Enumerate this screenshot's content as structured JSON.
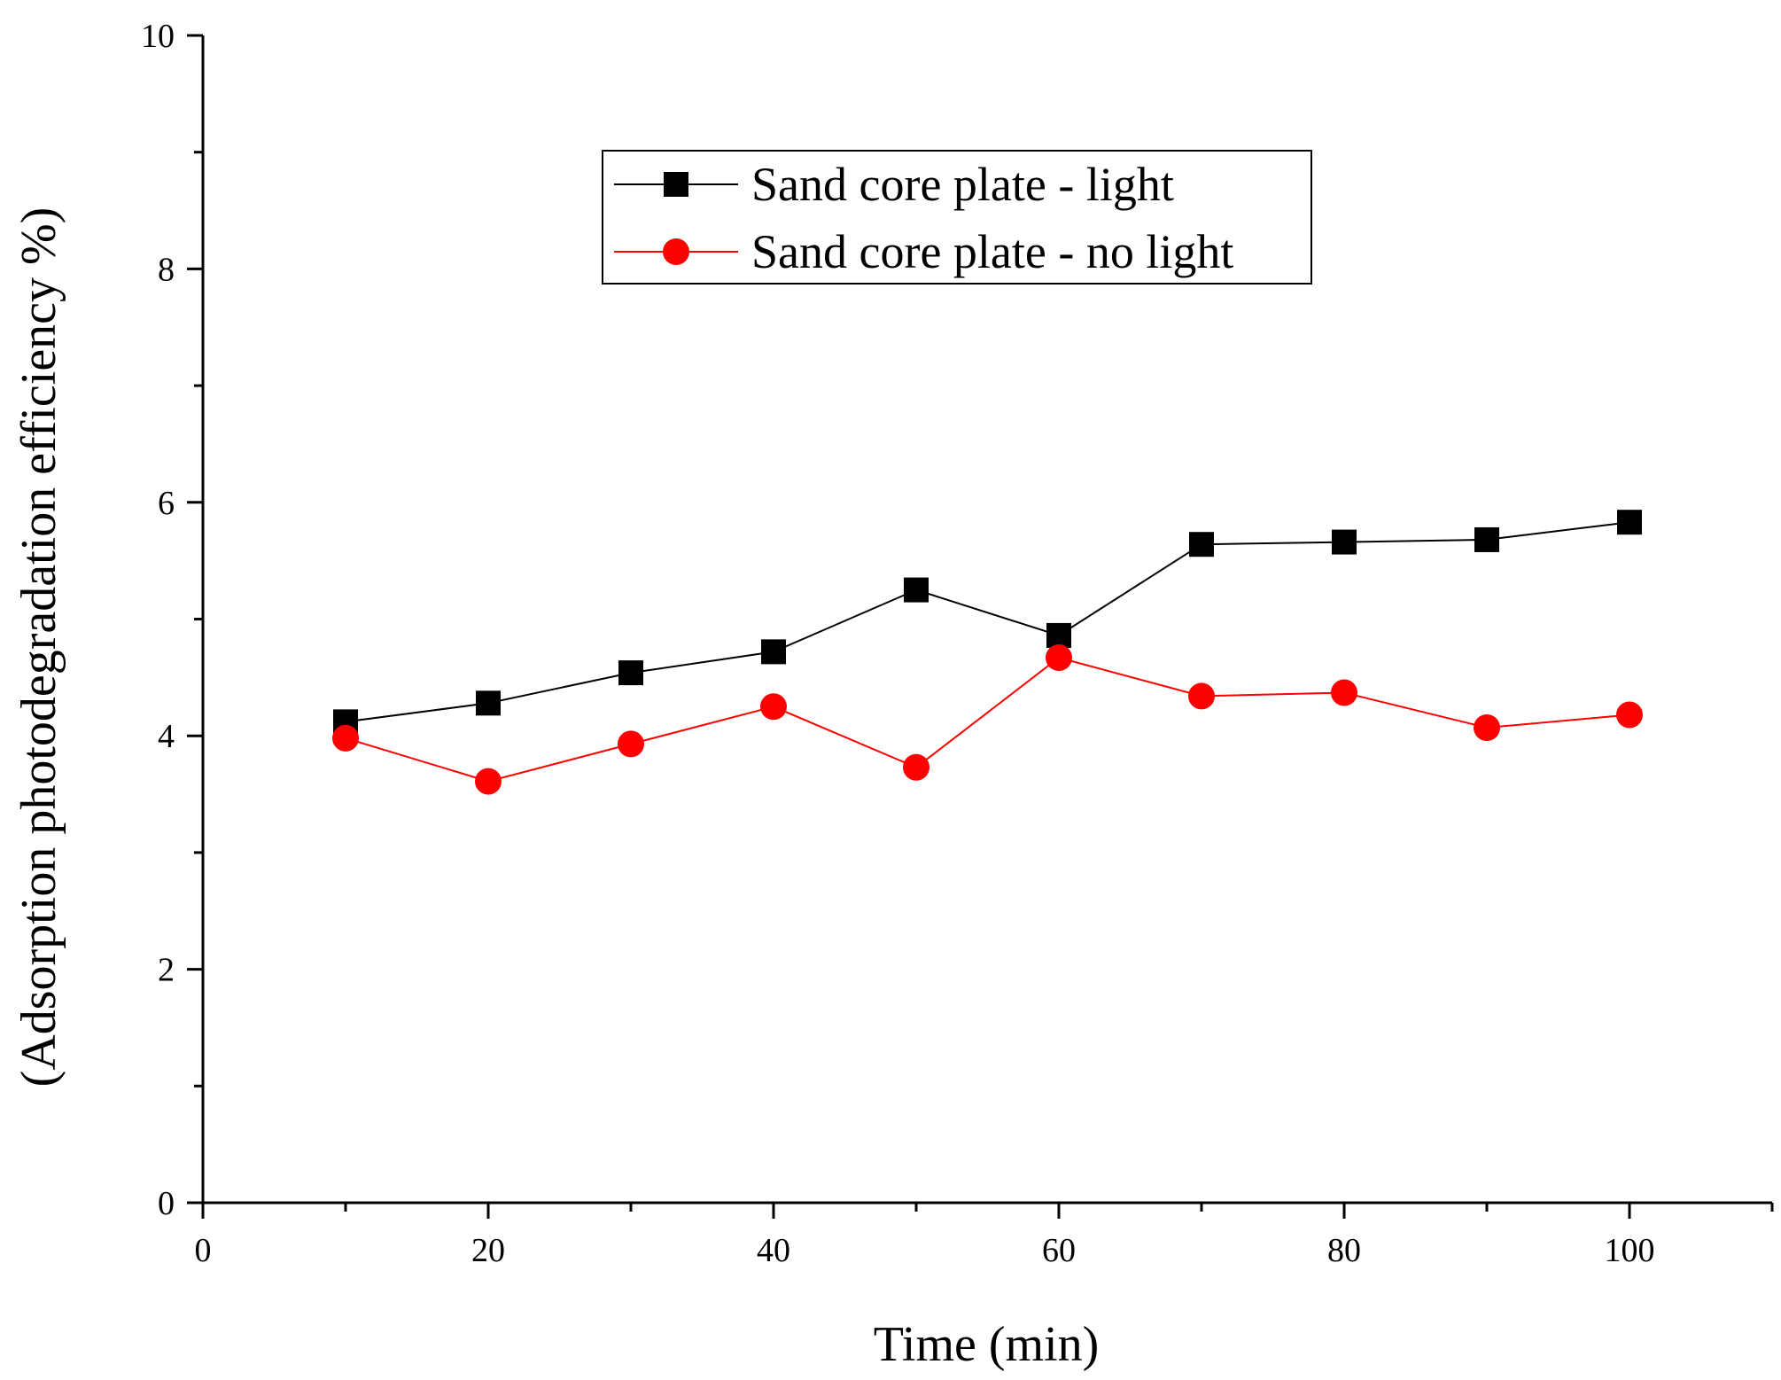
{
  "chart_data": {
    "type": "line",
    "title": "",
    "xlabel": "Time (min)",
    "ylabel": "(Adsorption photodegradation efficiency %)",
    "xlim": [
      0,
      110
    ],
    "ylim": [
      0,
      10
    ],
    "x_ticks": [
      0,
      20,
      40,
      60,
      80,
      100
    ],
    "x_tick_labels": [
      "0",
      "20",
      "40",
      "60",
      "80",
      "100"
    ],
    "x_minor_ticks": [
      10,
      30,
      50,
      70,
      90,
      110
    ],
    "y_ticks": [
      0,
      2,
      4,
      6,
      8,
      10
    ],
    "y_tick_labels": [
      "0",
      "2",
      "4",
      "6",
      "8",
      "10"
    ],
    "y_minor_ticks": [
      1,
      3,
      5,
      7,
      9
    ],
    "grid": false,
    "legend_position": "top-center",
    "x": [
      10,
      20,
      30,
      40,
      50,
      60,
      70,
      80,
      90,
      100
    ],
    "series": [
      {
        "name": "Sand core plate - light",
        "color": "#000000",
        "marker": "square",
        "values": [
          4.12,
          4.28,
          4.54,
          4.72,
          5.25,
          4.86,
          5.64,
          5.66,
          5.68,
          5.83
        ]
      },
      {
        "name": "Sand core plate - no light",
        "color": "#ff0000",
        "marker": "circle",
        "values": [
          3.98,
          3.61,
          3.93,
          4.25,
          3.73,
          4.67,
          4.34,
          4.37,
          4.07,
          4.18
        ]
      }
    ]
  }
}
